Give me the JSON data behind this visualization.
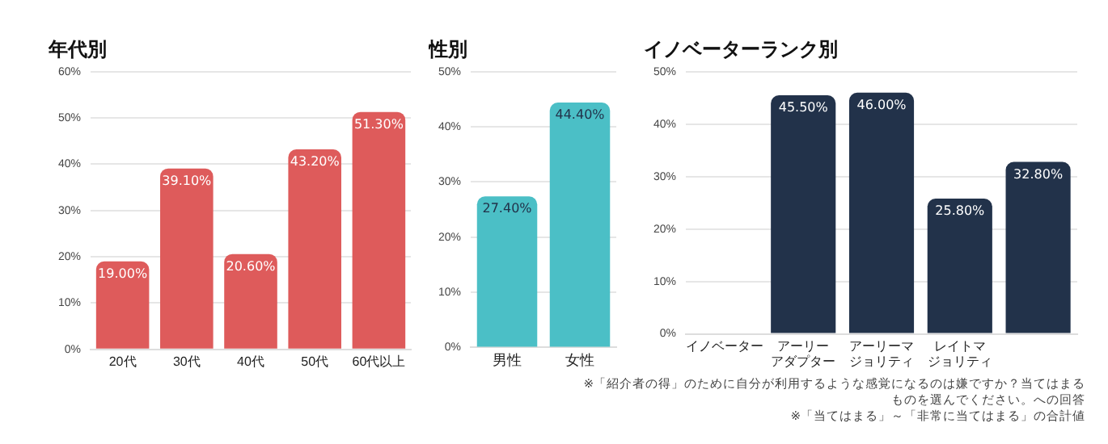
{
  "chart_data": [
    {
      "type": "bar",
      "title": "年代別",
      "categories": [
        "20代",
        "30代",
        "40代",
        "50代",
        "60代以上"
      ],
      "values": [
        19.0,
        39.1,
        20.6,
        43.2,
        51.3
      ],
      "color": "#de5b5b",
      "value_labels": [
        "19.00%",
        "39.10%",
        "20.60%",
        "43.20%",
        "51.30%"
      ],
      "ylim": [
        0,
        60
      ],
      "yticks": [
        {
          "value": 0,
          "label": "0%"
        },
        {
          "value": 10,
          "label": "10%"
        },
        {
          "value": 20,
          "label": "20%"
        },
        {
          "value": 30,
          "label": "30%"
        },
        {
          "value": 40,
          "label": "40%"
        },
        {
          "value": 50,
          "label": "50%"
        },
        {
          "value": 60,
          "label": "60%"
        }
      ],
      "grid": "y",
      "legend": false
    },
    {
      "type": "bar",
      "title": "性別",
      "categories": [
        "男性",
        "女性"
      ],
      "values": [
        27.4,
        44.4
      ],
      "color": "#4bbfc6",
      "value_labels": [
        "27.40%",
        "44.40%"
      ],
      "ylim": [
        0,
        50
      ],
      "yticks": [
        {
          "value": 0,
          "label": "0%"
        },
        {
          "value": 10,
          "label": "10%"
        },
        {
          "value": 20,
          "label": "20%"
        },
        {
          "value": 30,
          "label": "30%"
        },
        {
          "value": 40,
          "label": "40%"
        },
        {
          "value": 50,
          "label": "50%"
        }
      ],
      "grid": "y",
      "legend": false
    },
    {
      "type": "bar",
      "title": "イノベーターランク別",
      "categories": [
        "イノベーター",
        "アーリーアダプター",
        "アーリーマジョリティ",
        "レイトマジョリティ",
        null
      ],
      "values": [
        null,
        45.5,
        46.0,
        25.8,
        32.8
      ],
      "color": "#22324a",
      "value_labels": [
        null,
        "45.50%",
        "46.00%",
        "25.80%",
        "32.80%"
      ],
      "ylim": [
        0,
        50
      ],
      "yticks": [
        {
          "value": 0,
          "label": "0%"
        },
        {
          "value": 10,
          "label": "10%"
        },
        {
          "value": 20,
          "label": "20%"
        },
        {
          "value": 30,
          "label": "30%"
        },
        {
          "value": 40,
          "label": "40%"
        },
        {
          "value": 50,
          "label": "50%"
        }
      ],
      "grid": "y",
      "legend": false,
      "annotations": [
        "※「紹介者の得」のために自分が利用するような感覚になるのは嫌ですか？当てはまるものを選んでください。への回答",
        "※「当てはまる」～「非常に当てはまる」の合計値"
      ]
    }
  ]
}
